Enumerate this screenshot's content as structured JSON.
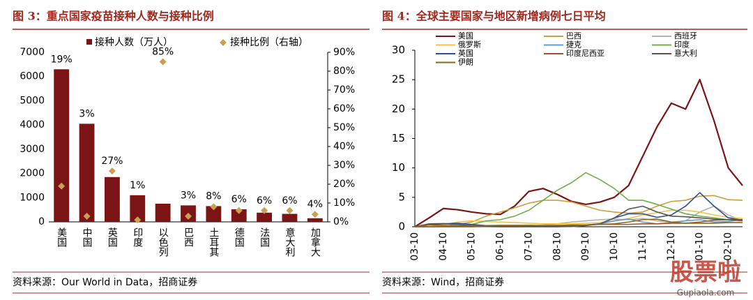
{
  "chart_data": [
    {
      "type": "bar",
      "title": "图 3：重点国家疫苗接种人数与接种比例",
      "source": "资料来源：Our World in Data，招商证券",
      "categories": [
        "美国",
        "中国",
        "英国",
        "印度",
        "以色列",
        "巴西",
        "土耳其",
        "德国",
        "法国",
        "意大利",
        "加拿大"
      ],
      "series": [
        {
          "name": "接种人数（万人）",
          "color": "#7b1414",
          "values": [
            6300,
            4050,
            1850,
            1100,
            750,
            680,
            650,
            520,
            380,
            330,
            150
          ]
        },
        {
          "name": "接种比例（右轴）",
          "color": "#c8a050",
          "axis": "y2",
          "values": [
            19,
            3,
            27,
            1,
            85,
            3,
            8,
            6,
            6,
            6,
            4
          ],
          "value_labels": [
            "19%",
            "3%",
            "27%",
            "1%",
            "85%",
            "3%",
            "8%",
            "6%",
            "6%",
            "6%",
            "4%"
          ]
        }
      ],
      "ylim": [
        0,
        7000
      ],
      "yticks": [
        0,
        1000,
        2000,
        3000,
        4000,
        5000,
        6000,
        7000
      ],
      "y2lim": [
        0,
        90
      ],
      "y2ticks": [
        {
          "value": 0,
          "label": "0%"
        },
        {
          "value": 10,
          "label": "10%"
        },
        {
          "value": 20,
          "label": "20%"
        },
        {
          "value": 30,
          "label": "30%"
        },
        {
          "value": 40,
          "label": "40%"
        },
        {
          "value": 50,
          "label": "50%"
        },
        {
          "value": 60,
          "label": "60%"
        },
        {
          "value": 70,
          "label": "70%"
        },
        {
          "value": 80,
          "label": "80%"
        },
        {
          "value": 90,
          "label": "90%"
        }
      ]
    },
    {
      "type": "line",
      "title": "图 4：全球主要国家与地区新增病例七日平均",
      "source": "资料来源：Wind，招商证券",
      "watermark": "股票啦",
      "watermark_url": "Gupiaola.com",
      "categories": [
        "03-10",
        null,
        "04-10",
        null,
        "05-10",
        null,
        "06-10",
        null,
        "07-10",
        null,
        "08-10",
        null,
        "09-10",
        null,
        "10-10",
        null,
        "11-10",
        null,
        "12-10",
        null,
        "01-10",
        null,
        "02-10",
        null
      ],
      "series": [
        {
          "name": "美国",
          "color": "#7b1414",
          "values": [
            0,
            1.5,
            3.1,
            2.9,
            2.5,
            2.2,
            2.1,
            3.5,
            6,
            6.5,
            5.5,
            4.3,
            3.8,
            4.2,
            5,
            7,
            12,
            17,
            21,
            20,
            25,
            18,
            10,
            7
          ]
        },
        {
          "name": "巴西",
          "color": "#c8a040",
          "values": [
            0,
            0,
            0.1,
            0.4,
            0.8,
            1.8,
            2.5,
            3.2,
            4,
            4.5,
            4.5,
            4.2,
            3.5,
            2.8,
            2.5,
            2.3,
            2.5,
            3.5,
            4.3,
            4.5,
            5.2,
            5.3,
            4.6,
            4.5
          ]
        },
        {
          "name": "西班牙",
          "color": "#b0b0b0",
          "values": [
            0,
            0.5,
            0.6,
            0.3,
            0.1,
            0,
            0,
            0,
            0.1,
            0.3,
            0.5,
            0.8,
            1,
            1.2,
            1.3,
            1.2,
            1.4,
            1,
            0.8,
            1,
            2.5,
            3.5,
            2,
            1
          ]
        },
        {
          "name": "俄罗斯",
          "color": "#f5c342",
          "values": [
            0,
            0,
            0.3,
            0.8,
            1,
            0.9,
            0.8,
            0.7,
            0.6,
            0.5,
            0.5,
            0.5,
            0.6,
            0.7,
            1,
            1.4,
            2,
            2.4,
            2.8,
            2.8,
            2.5,
            2,
            1.6,
            1.4
          ]
        },
        {
          "name": "捷克",
          "color": "#5b9bd5",
          "values": [
            0,
            0,
            0,
            0,
            0,
            0,
            0,
            0,
            0,
            0,
            0,
            0,
            0.2,
            0.5,
            1,
            1.3,
            0.8,
            0.5,
            0.7,
            1,
            1.2,
            0.8,
            0.9,
            1.2
          ]
        },
        {
          "name": "印度",
          "color": "#70ad47",
          "values": [
            0,
            0,
            0,
            0.1,
            0.4,
            1,
            1.2,
            1.8,
            2.8,
            4.5,
            6.2,
            7.5,
            9.2,
            8,
            6.5,
            4.5,
            4.5,
            3.8,
            3,
            2.2,
            1.8,
            1.5,
            1.2,
            1.2
          ]
        },
        {
          "name": "英国",
          "color": "#2f4f8f",
          "values": [
            0,
            0.3,
            0.5,
            0.6,
            0.4,
            0.2,
            0.1,
            0.1,
            0.05,
            0.05,
            0.1,
            0.1,
            0.3,
            0.5,
            1.5,
            2.2,
            2.2,
            1.6,
            2,
            3.5,
            5.8,
            3.5,
            1.5,
            1.1
          ]
        },
        {
          "name": "印度尼西亚",
          "color": "#a0522d",
          "values": [
            0,
            0,
            0,
            0,
            0,
            0.1,
            0.1,
            0.1,
            0.2,
            0.2,
            0.2,
            0.3,
            0.3,
            0.4,
            0.4,
            0.4,
            0.5,
            0.5,
            0.6,
            0.6,
            0.8,
            1.1,
            1.2,
            1
          ]
        },
        {
          "name": "意大利",
          "color": "#555555",
          "values": [
            0,
            0.5,
            0.5,
            0.4,
            0.2,
            0.1,
            0,
            0,
            0,
            0,
            0,
            0.1,
            0.2,
            0.5,
            1.5,
            3,
            3.5,
            2.5,
            1.8,
            1.7,
            1.5,
            1.3,
            1.2,
            1.2
          ]
        },
        {
          "name": "伊朗",
          "color": "#8b6914",
          "values": [
            0,
            0.3,
            0.2,
            0.15,
            0.15,
            0.2,
            0.25,
            0.25,
            0.25,
            0.2,
            0.25,
            0.25,
            0.3,
            0.4,
            0.5,
            0.8,
            1.2,
            1.3,
            0.8,
            0.6,
            0.6,
            0.6,
            0.7,
            0.7
          ]
        }
      ],
      "ylim": [
        0,
        30
      ],
      "yticks": [
        0,
        5,
        10,
        15,
        20,
        25,
        30
      ]
    }
  ]
}
